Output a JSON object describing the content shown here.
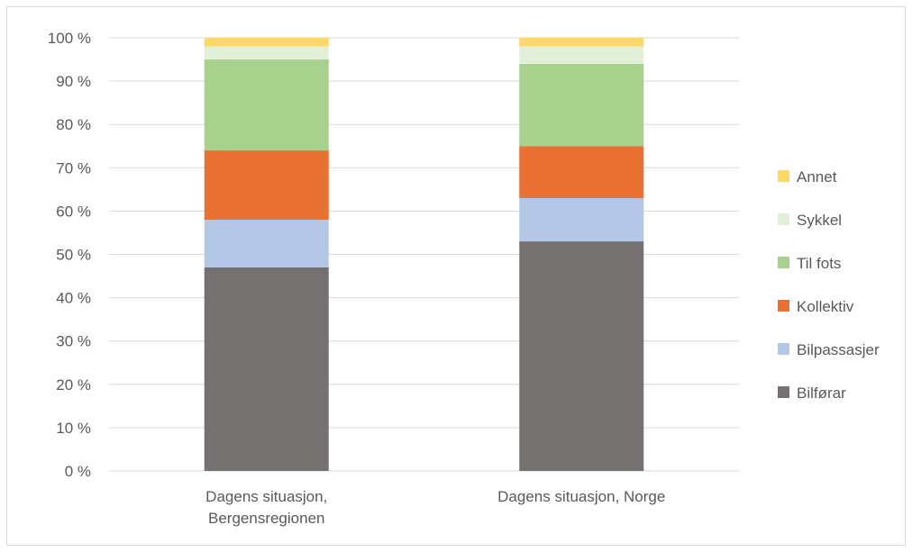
{
  "chart_data": {
    "type": "bar",
    "stacked": true,
    "categories": [
      [
        "Dagens situasjon,",
        "Bergensregionen"
      ],
      [
        "Dagens situasjon, Norge"
      ]
    ],
    "series": [
      {
        "name": "Bilførar",
        "color": "#767171",
        "values": [
          47,
          53
        ]
      },
      {
        "name": "Bilpassasjer",
        "color": "#b4c7e7",
        "values": [
          11,
          10
        ]
      },
      {
        "name": "Kollektiv",
        "color": "#e97132",
        "values": [
          16,
          12
        ]
      },
      {
        "name": "Til fots",
        "color": "#a9d18e",
        "values": [
          21,
          19
        ]
      },
      {
        "name": "Sykkel",
        "color": "#e2f0d9",
        "values": [
          3,
          4
        ]
      },
      {
        "name": "Annet",
        "color": "#ffd966",
        "values": [
          2,
          2
        ]
      }
    ],
    "ylim": [
      0,
      100
    ],
    "yticks": [
      0,
      10,
      20,
      30,
      40,
      50,
      60,
      70,
      80,
      90,
      100
    ],
    "ytick_labels": [
      "0 %",
      "10 %",
      "20 %",
      "30 %",
      "40 %",
      "50 %",
      "60 %",
      "70 %",
      "80 %",
      "90 %",
      "100 %"
    ],
    "grid": true,
    "legend_position": "right",
    "title": "",
    "xlabel": "",
    "ylabel": ""
  }
}
